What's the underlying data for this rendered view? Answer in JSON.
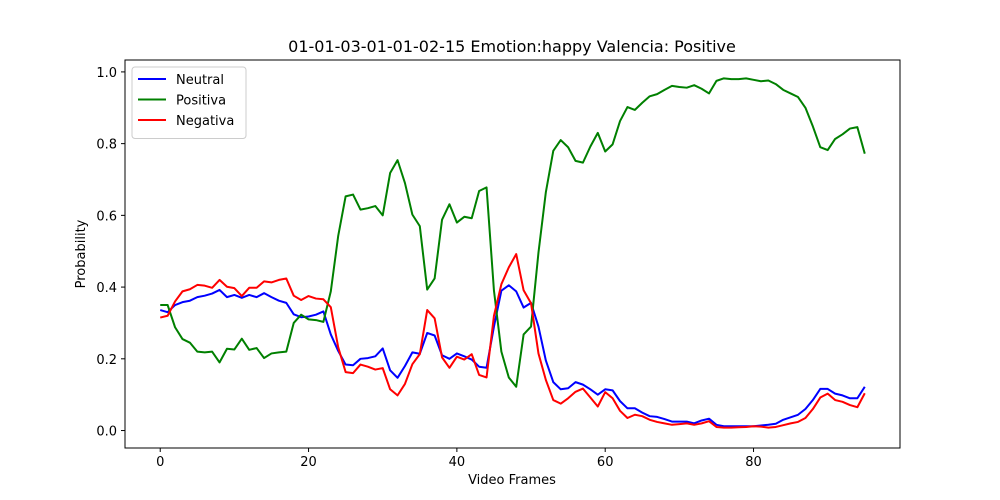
{
  "chart_data": {
    "type": "line",
    "title": "01-01-03-01-01-02-15 Emotion:happy Valencia: Positive",
    "xlabel": "Video Frames",
    "ylabel": "Probability",
    "xlim": [
      -4.75,
      99.75
    ],
    "ylim": [
      -0.0487,
      1.0332
    ],
    "xticks": [
      0,
      20,
      40,
      60,
      80
    ],
    "yticks": [
      0.0,
      0.2,
      0.4,
      0.6,
      0.8,
      1.0
    ],
    "xtick_labels": [
      "0",
      "20",
      "40",
      "60",
      "80"
    ],
    "ytick_labels": [
      "0.0",
      "0.2",
      "0.4",
      "0.6",
      "0.8",
      "1.0"
    ],
    "grid": false,
    "legend_position": "top-left",
    "series": [
      {
        "name": "Neutral",
        "color": "#0000ff",
        "values": [
          0.336,
          0.33,
          0.35,
          0.358,
          0.362,
          0.372,
          0.376,
          0.382,
          0.392,
          0.372,
          0.378,
          0.37,
          0.378,
          0.372,
          0.383,
          0.372,
          0.362,
          0.356,
          0.324,
          0.316,
          0.318,
          0.323,
          0.332,
          0.268,
          0.222,
          0.184,
          0.182,
          0.2,
          0.202,
          0.207,
          0.229,
          0.168,
          0.147,
          0.18,
          0.218,
          0.214,
          0.272,
          0.265,
          0.21,
          0.2,
          0.215,
          0.207,
          0.198,
          0.178,
          0.175,
          0.29,
          0.39,
          0.405,
          0.388,
          0.343,
          0.356,
          0.29,
          0.195,
          0.135,
          0.115,
          0.118,
          0.135,
          0.128,
          0.115,
          0.1,
          0.115,
          0.112,
          0.082,
          0.062,
          0.062,
          0.05,
          0.04,
          0.038,
          0.032,
          0.025,
          0.025,
          0.025,
          0.02,
          0.028,
          0.033,
          0.016,
          0.012,
          0.012,
          0.012,
          0.012,
          0.012,
          0.014,
          0.016,
          0.019,
          0.03,
          0.037,
          0.044,
          0.06,
          0.085,
          0.116,
          0.116,
          0.103,
          0.098,
          0.09,
          0.09,
          0.122
        ]
      },
      {
        "name": "Positiva",
        "color": "#008000",
        "values": [
          0.35,
          0.35,
          0.288,
          0.255,
          0.245,
          0.22,
          0.218,
          0.22,
          0.19,
          0.228,
          0.226,
          0.256,
          0.225,
          0.23,
          0.202,
          0.215,
          0.218,
          0.22,
          0.3,
          0.323,
          0.31,
          0.308,
          0.303,
          0.388,
          0.543,
          0.653,
          0.658,
          0.616,
          0.62,
          0.626,
          0.6,
          0.718,
          0.754,
          0.69,
          0.602,
          0.57,
          0.393,
          0.424,
          0.588,
          0.631,
          0.58,
          0.596,
          0.592,
          0.668,
          0.678,
          0.39,
          0.22,
          0.148,
          0.122,
          0.268,
          0.29,
          0.496,
          0.665,
          0.78,
          0.81,
          0.79,
          0.752,
          0.747,
          0.792,
          0.83,
          0.778,
          0.798,
          0.863,
          0.902,
          0.894,
          0.914,
          0.932,
          0.938,
          0.95,
          0.961,
          0.958,
          0.956,
          0.963,
          0.953,
          0.94,
          0.975,
          0.982,
          0.98,
          0.98,
          0.982,
          0.978,
          0.974,
          0.976,
          0.966,
          0.95,
          0.94,
          0.93,
          0.9,
          0.848,
          0.79,
          0.782,
          0.813,
          0.826,
          0.842,
          0.846,
          0.772
        ]
      },
      {
        "name": "Negativa",
        "color": "#ff0000",
        "values": [
          0.315,
          0.32,
          0.36,
          0.388,
          0.394,
          0.406,
          0.404,
          0.398,
          0.42,
          0.401,
          0.397,
          0.375,
          0.398,
          0.398,
          0.416,
          0.413,
          0.42,
          0.424,
          0.376,
          0.364,
          0.375,
          0.368,
          0.366,
          0.344,
          0.232,
          0.163,
          0.16,
          0.184,
          0.178,
          0.17,
          0.174,
          0.115,
          0.098,
          0.13,
          0.185,
          0.213,
          0.336,
          0.313,
          0.204,
          0.175,
          0.206,
          0.198,
          0.213,
          0.155,
          0.148,
          0.32,
          0.408,
          0.455,
          0.492,
          0.391,
          0.355,
          0.215,
          0.141,
          0.085,
          0.075,
          0.09,
          0.108,
          0.117,
          0.092,
          0.067,
          0.107,
          0.09,
          0.055,
          0.035,
          0.044,
          0.04,
          0.03,
          0.024,
          0.02,
          0.016,
          0.018,
          0.02,
          0.016,
          0.02,
          0.026,
          0.01,
          0.008,
          0.008,
          0.009,
          0.01,
          0.012,
          0.011,
          0.008,
          0.01,
          0.015,
          0.02,
          0.024,
          0.035,
          0.06,
          0.092,
          0.103,
          0.085,
          0.08,
          0.071,
          0.065,
          0.104
        ]
      }
    ]
  }
}
